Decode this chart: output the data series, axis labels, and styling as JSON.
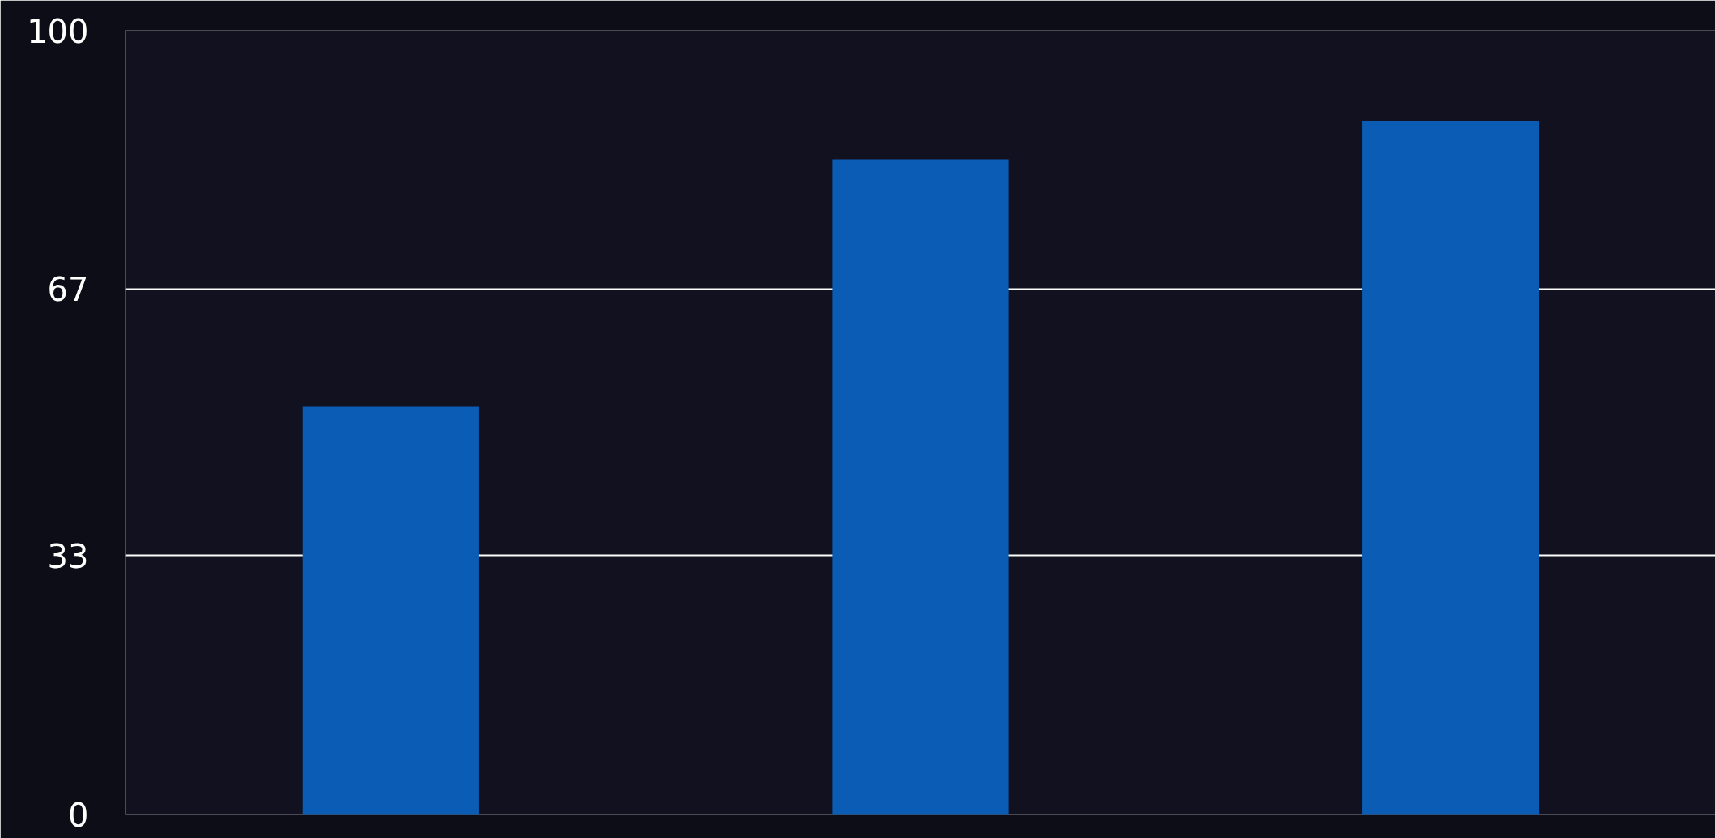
{
  "chart_data": {
    "type": "bar",
    "categories": [
      null,
      null,
      null
    ],
    "values": [
      52,
      83.5,
      88.4
    ],
    "color": "#0a5cb4",
    "ylim": [
      0,
      100
    ],
    "yticks": [
      0,
      33,
      67,
      100
    ],
    "grid": "y",
    "tick_labels": "y"
  }
}
